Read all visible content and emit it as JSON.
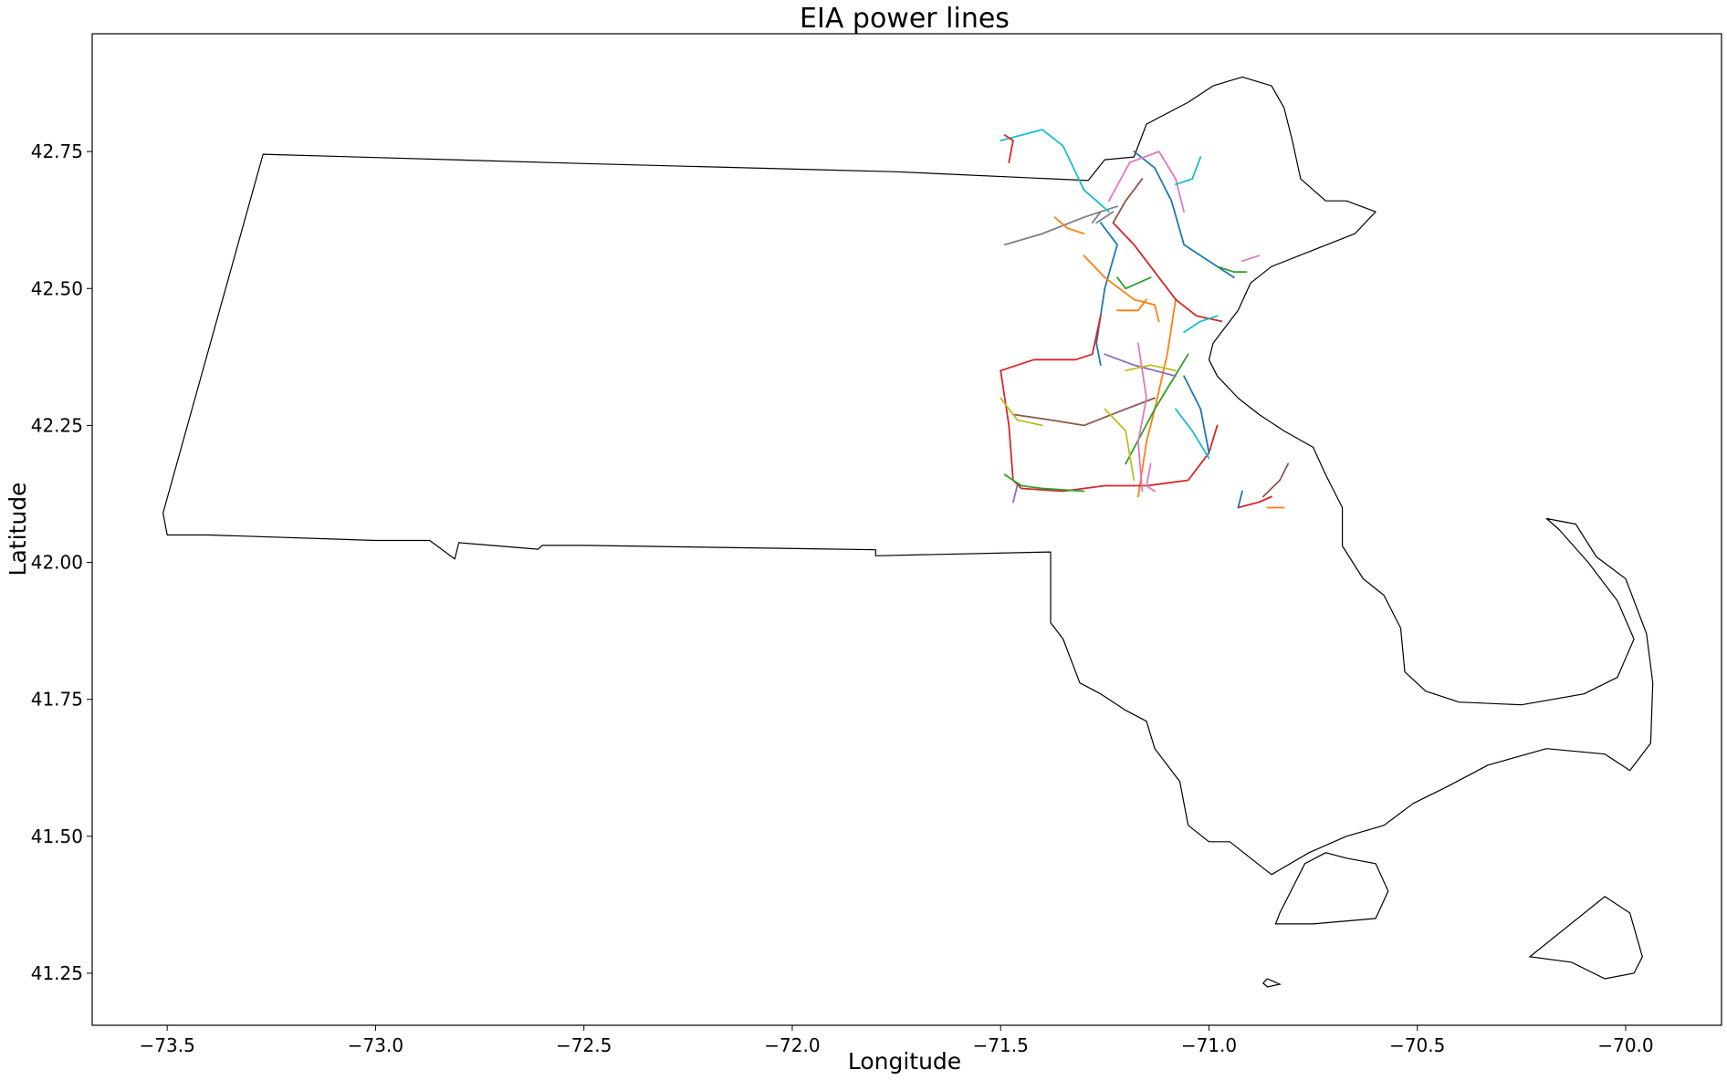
{
  "chart_data": {
    "type": "map",
    "title": "EIA power lines",
    "xlabel": "Longitude",
    "ylabel": "Latitude",
    "xlim": [
      -73.68,
      -69.77
    ],
    "ylim": [
      41.155,
      42.965
    ],
    "grid": false,
    "xticks": [
      {
        "value": -73.5,
        "label": "−73.5"
      },
      {
        "value": -73.0,
        "label": "−73.0"
      },
      {
        "value": -72.5,
        "label": "−72.5"
      },
      {
        "value": -72.0,
        "label": "−72.0"
      },
      {
        "value": -71.5,
        "label": "−71.5"
      },
      {
        "value": -71.0,
        "label": "−71.0"
      },
      {
        "value": -70.5,
        "label": "−70.5"
      },
      {
        "value": -70.0,
        "label": "−70.0"
      }
    ],
    "yticks": [
      {
        "value": 41.25,
        "label": "41.25"
      },
      {
        "value": 41.5,
        "label": "41.50"
      },
      {
        "value": 41.75,
        "label": "41.75"
      },
      {
        "value": 42.0,
        "label": "42.00"
      },
      {
        "value": 42.25,
        "label": "42.25"
      },
      {
        "value": 42.5,
        "label": "42.50"
      },
      {
        "value": 42.75,
        "label": "42.75"
      }
    ],
    "boundary": {
      "color": "#000000",
      "mainland": [
        [
          -73.27,
          42.745
        ],
        [
          -72.5,
          42.728
        ],
        [
          -71.75,
          42.713
        ],
        [
          -71.29,
          42.697
        ],
        [
          -71.25,
          42.735
        ],
        [
          -71.18,
          42.74
        ],
        [
          -71.15,
          42.8
        ],
        [
          -71.05,
          42.84
        ],
        [
          -70.99,
          42.87
        ],
        [
          -70.92,
          42.886
        ],
        [
          -70.85,
          42.87
        ],
        [
          -70.82,
          42.83
        ],
        [
          -70.8,
          42.77
        ],
        [
          -70.78,
          42.7
        ],
        [
          -70.72,
          42.66
        ],
        [
          -70.67,
          42.66
        ],
        [
          -70.6,
          42.64
        ],
        [
          -70.65,
          42.6
        ],
        [
          -70.75,
          42.57
        ],
        [
          -70.85,
          42.54
        ],
        [
          -70.9,
          42.51
        ],
        [
          -70.93,
          42.46
        ],
        [
          -70.96,
          42.43
        ],
        [
          -70.99,
          42.4
        ],
        [
          -71.0,
          42.37
        ],
        [
          -70.98,
          42.34
        ],
        [
          -70.93,
          42.3
        ],
        [
          -70.88,
          42.27
        ],
        [
          -70.82,
          42.24
        ],
        [
          -70.75,
          42.21
        ],
        [
          -70.72,
          42.16
        ],
        [
          -70.68,
          42.1
        ],
        [
          -70.68,
          42.03
        ],
        [
          -70.63,
          41.97
        ],
        [
          -70.58,
          41.94
        ],
        [
          -70.54,
          41.88
        ],
        [
          -70.53,
          41.8
        ],
        [
          -70.48,
          41.765
        ],
        [
          -70.4,
          41.745
        ],
        [
          -70.25,
          41.74
        ],
        [
          -70.1,
          41.76
        ],
        [
          -70.02,
          41.79
        ],
        [
          -69.98,
          41.86
        ],
        [
          -70.02,
          41.93
        ],
        [
          -70.09,
          42.0
        ],
        [
          -70.16,
          42.06
        ],
        [
          -70.19,
          42.08
        ],
        [
          -70.12,
          42.07
        ],
        [
          -70.07,
          42.01
        ],
        [
          -70.0,
          41.97
        ],
        [
          -69.95,
          41.87
        ],
        [
          -69.935,
          41.78
        ],
        [
          -69.94,
          41.67
        ],
        [
          -69.99,
          41.62
        ],
        [
          -70.05,
          41.65
        ],
        [
          -70.19,
          41.66
        ],
        [
          -70.33,
          41.63
        ],
        [
          -70.43,
          41.59
        ],
        [
          -70.51,
          41.56
        ],
        [
          -70.58,
          41.52
        ],
        [
          -70.67,
          41.5
        ],
        [
          -70.76,
          41.47
        ],
        [
          -70.85,
          41.43
        ],
        [
          -70.9,
          41.46
        ],
        [
          -70.95,
          41.49
        ],
        [
          -71.0,
          41.49
        ],
        [
          -71.05,
          41.52
        ],
        [
          -71.07,
          41.6
        ],
        [
          -71.13,
          41.66
        ],
        [
          -71.15,
          41.71
        ],
        [
          -71.2,
          41.73
        ],
        [
          -71.26,
          41.76
        ],
        [
          -71.31,
          41.78
        ],
        [
          -71.35,
          41.86
        ],
        [
          -71.38,
          41.89
        ],
        [
          -71.38,
          42.019
        ],
        [
          -71.8,
          42.012
        ],
        [
          -71.8,
          42.023
        ],
        [
          -72.5,
          42.031
        ],
        [
          -72.6,
          42.031
        ],
        [
          -72.61,
          42.024
        ],
        [
          -72.8,
          42.036
        ],
        [
          -72.81,
          42.006
        ],
        [
          -72.87,
          42.04
        ],
        [
          -73.0,
          42.04
        ],
        [
          -73.4,
          42.05
        ],
        [
          -73.5,
          42.05
        ],
        [
          -73.51,
          42.09
        ],
        [
          -73.27,
          42.745
        ]
      ],
      "islands": [
        [
          [
            -70.83,
            41.36
          ],
          [
            -70.77,
            41.45
          ],
          [
            -70.72,
            41.47
          ],
          [
            -70.67,
            41.46
          ],
          [
            -70.6,
            41.45
          ],
          [
            -70.57,
            41.4
          ],
          [
            -70.6,
            41.35
          ],
          [
            -70.75,
            41.34
          ],
          [
            -70.84,
            41.34
          ],
          [
            -70.83,
            41.36
          ]
        ],
        [
          [
            -70.23,
            41.28
          ],
          [
            -70.05,
            41.39
          ],
          [
            -69.99,
            41.36
          ],
          [
            -69.96,
            41.28
          ],
          [
            -69.98,
            41.25
          ],
          [
            -70.05,
            41.24
          ],
          [
            -70.13,
            41.27
          ],
          [
            -70.23,
            41.28
          ]
        ],
        [
          [
            -70.86,
            41.24
          ],
          [
            -70.83,
            41.23
          ],
          [
            -70.86,
            41.225
          ],
          [
            -70.87,
            41.232
          ],
          [
            -70.86,
            41.24
          ]
        ]
      ]
    },
    "series": [
      {
        "color": "#1f77b4",
        "points": [
          [
            -71.26,
            42.62
          ],
          [
            -71.22,
            42.58
          ],
          [
            -71.25,
            42.5
          ],
          [
            -71.27,
            42.4
          ],
          [
            -71.26,
            42.36
          ]
        ]
      },
      {
        "color": "#ff7f0e",
        "points": [
          [
            -71.08,
            42.48
          ],
          [
            -71.1,
            42.38
          ],
          [
            -71.13,
            42.28
          ],
          [
            -71.15,
            42.22
          ],
          [
            -71.17,
            42.12
          ]
        ]
      },
      {
        "color": "#2ca02c",
        "points": [
          [
            -71.05,
            42.38
          ],
          [
            -71.09,
            42.33
          ],
          [
            -71.13,
            42.28
          ],
          [
            -71.2,
            42.18
          ]
        ]
      },
      {
        "color": "#d62728",
        "points": [
          [
            -71.5,
            42.35
          ],
          [
            -71.48,
            42.25
          ],
          [
            -71.47,
            42.15
          ],
          [
            -71.45,
            42.135
          ],
          [
            -71.35,
            42.13
          ],
          [
            -71.25,
            42.14
          ],
          [
            -71.15,
            42.14
          ],
          [
            -71.05,
            42.15
          ],
          [
            -71.0,
            42.2
          ],
          [
            -70.98,
            42.25
          ]
        ]
      },
      {
        "color": "#d62728",
        "points": [
          [
            -71.5,
            42.35
          ],
          [
            -71.42,
            42.37
          ],
          [
            -71.32,
            42.37
          ],
          [
            -71.28,
            42.38
          ],
          [
            -71.26,
            42.45
          ]
        ]
      },
      {
        "color": "#8c564b",
        "points": [
          [
            -71.47,
            42.27
          ],
          [
            -71.38,
            42.26
          ],
          [
            -71.3,
            42.25
          ],
          [
            -71.2,
            42.28
          ],
          [
            -71.13,
            42.3
          ]
        ]
      },
      {
        "color": "#e377c2",
        "points": [
          [
            -71.17,
            42.4
          ],
          [
            -71.15,
            42.3
          ],
          [
            -71.17,
            42.22
          ],
          [
            -71.16,
            42.13
          ]
        ]
      },
      {
        "color": "#7f7f7f",
        "points": [
          [
            -71.49,
            42.58
          ],
          [
            -71.4,
            42.6
          ],
          [
            -71.3,
            42.63
          ],
          [
            -71.22,
            42.65
          ]
        ]
      },
      {
        "color": "#bcbd22",
        "points": [
          [
            -71.5,
            42.3
          ],
          [
            -71.46,
            42.26
          ],
          [
            -71.4,
            42.25
          ]
        ]
      },
      {
        "color": "#17becf",
        "points": [
          [
            -71.5,
            42.77
          ],
          [
            -71.4,
            42.79
          ],
          [
            -71.35,
            42.76
          ],
          [
            -71.3,
            42.68
          ],
          [
            -71.24,
            42.64
          ]
        ]
      },
      {
        "color": "#1f77b4",
        "points": [
          [
            -71.18,
            42.75
          ],
          [
            -71.13,
            42.72
          ],
          [
            -71.09,
            42.66
          ],
          [
            -71.06,
            42.58
          ],
          [
            -70.98,
            42.54
          ],
          [
            -70.94,
            42.52
          ]
        ]
      },
      {
        "color": "#ff7f0e",
        "points": [
          [
            -71.3,
            42.56
          ],
          [
            -71.25,
            42.52
          ],
          [
            -71.18,
            42.48
          ],
          [
            -71.13,
            42.47
          ],
          [
            -71.12,
            42.44
          ]
        ]
      },
      {
        "color": "#2ca02c",
        "points": [
          [
            -71.22,
            42.52
          ],
          [
            -71.2,
            42.5
          ],
          [
            -71.14,
            42.52
          ]
        ]
      },
      {
        "color": "#d62728",
        "points": [
          [
            -71.23,
            42.62
          ],
          [
            -71.18,
            42.58
          ],
          [
            -71.13,
            42.53
          ],
          [
            -71.08,
            42.48
          ],
          [
            -71.03,
            42.45
          ],
          [
            -70.97,
            42.44
          ]
        ]
      },
      {
        "color": "#9467bd",
        "points": [
          [
            -71.25,
            42.38
          ],
          [
            -71.18,
            42.36
          ],
          [
            -71.08,
            42.34
          ]
        ]
      },
      {
        "color": "#8c564b",
        "points": [
          [
            -71.23,
            42.62
          ],
          [
            -71.2,
            42.66
          ],
          [
            -71.16,
            42.7
          ]
        ]
      },
      {
        "color": "#e377c2",
        "points": [
          [
            -71.24,
            42.66
          ],
          [
            -71.19,
            42.73
          ],
          [
            -71.12,
            42.75
          ],
          [
            -71.08,
            42.7
          ],
          [
            -71.06,
            42.64
          ]
        ]
      },
      {
        "color": "#7f7f7f",
        "points": [
          [
            -71.26,
            42.64
          ],
          [
            -71.28,
            42.62
          ]
        ]
      },
      {
        "color": "#bcbd22",
        "points": [
          [
            -71.2,
            42.35
          ],
          [
            -71.14,
            42.36
          ],
          [
            -71.08,
            42.35
          ]
        ]
      },
      {
        "color": "#17becf",
        "points": [
          [
            -71.06,
            42.42
          ],
          [
            -71.02,
            42.44
          ],
          [
            -70.98,
            42.45
          ]
        ]
      },
      {
        "color": "#1f77b4",
        "points": [
          [
            -71.06,
            42.34
          ],
          [
            -71.02,
            42.28
          ],
          [
            -71.0,
            42.2
          ]
        ]
      },
      {
        "color": "#ff7f0e",
        "points": [
          [
            -71.22,
            42.46
          ],
          [
            -71.17,
            42.46
          ],
          [
            -71.15,
            42.48
          ]
        ]
      },
      {
        "color": "#2ca02c",
        "points": [
          [
            -71.49,
            42.16
          ],
          [
            -71.45,
            42.14
          ],
          [
            -71.4,
            42.135
          ],
          [
            -71.3,
            42.13
          ]
        ]
      },
      {
        "color": "#d62728",
        "points": [
          [
            -70.93,
            42.1
          ],
          [
            -70.88,
            42.11
          ],
          [
            -70.85,
            42.12
          ]
        ]
      },
      {
        "color": "#9467bd",
        "points": [
          [
            -71.47,
            42.11
          ],
          [
            -71.46,
            42.14
          ]
        ]
      },
      {
        "color": "#8c564b",
        "points": [
          [
            -70.87,
            42.12
          ],
          [
            -70.83,
            42.15
          ],
          [
            -70.81,
            42.18
          ]
        ]
      },
      {
        "color": "#e377c2",
        "points": [
          [
            -71.14,
            42.18
          ],
          [
            -71.15,
            42.14
          ],
          [
            -71.13,
            42.13
          ]
        ]
      },
      {
        "color": "#7f7f7f",
        "points": [
          [
            -71.27,
            42.62
          ],
          [
            -71.23,
            42.64
          ]
        ]
      },
      {
        "color": "#bcbd22",
        "points": [
          [
            -71.25,
            42.28
          ],
          [
            -71.2,
            42.24
          ],
          [
            -71.18,
            42.15
          ]
        ]
      },
      {
        "color": "#17becf",
        "points": [
          [
            -71.08,
            42.28
          ],
          [
            -71.04,
            42.24
          ],
          [
            -71.0,
            42.19
          ]
        ]
      },
      {
        "color": "#ff7f0e",
        "points": [
          [
            -70.86,
            42.1
          ],
          [
            -70.82,
            42.1
          ]
        ]
      },
      {
        "color": "#1f77b4",
        "points": [
          [
            -70.93,
            42.1
          ],
          [
            -70.92,
            42.13
          ]
        ]
      },
      {
        "color": "#2ca02c",
        "points": [
          [
            -70.98,
            42.54
          ],
          [
            -70.94,
            42.53
          ],
          [
            -70.91,
            42.53
          ]
        ]
      },
      {
        "color": "#e377c2",
        "points": [
          [
            -70.92,
            42.55
          ],
          [
            -70.88,
            42.56
          ]
        ]
      },
      {
        "color": "#17becf",
        "points": [
          [
            -71.08,
            42.69
          ],
          [
            -71.04,
            42.7
          ],
          [
            -71.02,
            42.74
          ]
        ]
      },
      {
        "color": "#d62728",
        "points": [
          [
            -71.48,
            42.73
          ],
          [
            -71.47,
            42.77
          ],
          [
            -71.49,
            42.78
          ]
        ]
      },
      {
        "color": "#ff7f0e",
        "points": [
          [
            -71.37,
            42.63
          ],
          [
            -71.34,
            42.61
          ],
          [
            -71.3,
            42.6
          ]
        ]
      }
    ]
  }
}
